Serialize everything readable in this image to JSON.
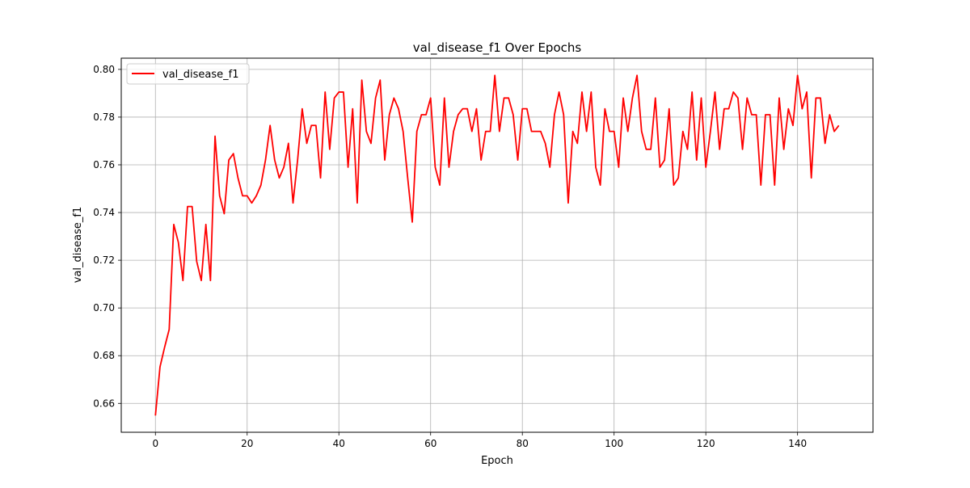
{
  "chart_data": {
    "type": "line",
    "title": "val_disease_f1 Over Epochs",
    "xlabel": "Epoch",
    "ylabel": "val_disease_f1",
    "xlim": [
      -7.45,
      156.45
    ],
    "ylim": [
      0.6479,
      0.8047
    ],
    "xticks": [
      0,
      20,
      40,
      60,
      80,
      100,
      120,
      140
    ],
    "xtick_labels": [
      "0",
      "20",
      "40",
      "60",
      "80",
      "100",
      "120",
      "140"
    ],
    "yticks": [
      0.66,
      0.68,
      0.7,
      0.72,
      0.74,
      0.76,
      0.78,
      0.8
    ],
    "ytick_labels": [
      "0.66",
      "0.68",
      "0.70",
      "0.72",
      "0.74",
      "0.76",
      "0.78",
      "0.80"
    ],
    "grid": true,
    "legend_position": "top-left",
    "series": [
      {
        "name": "val_disease_f1",
        "color": "#ff0000",
        "x_start": 0,
        "values": [
          0.6549,
          0.6753,
          0.6835,
          0.691,
          0.735,
          0.7275,
          0.7115,
          0.7425,
          0.7425,
          0.7195,
          0.7115,
          0.735,
          0.7115,
          0.772,
          0.747,
          0.7395,
          0.762,
          0.7647,
          0.7545,
          0.747,
          0.747,
          0.744,
          0.747,
          0.7515,
          0.762,
          0.7765,
          0.762,
          0.7545,
          0.759,
          0.769,
          0.744,
          0.762,
          0.7835,
          0.769,
          0.7765,
          0.7765,
          0.7545,
          0.7905,
          0.7665,
          0.788,
          0.7905,
          0.7905,
          0.759,
          0.7835,
          0.744,
          0.7955,
          0.774,
          0.769,
          0.788,
          0.7955,
          0.762,
          0.781,
          0.788,
          0.7835,
          0.774,
          0.7545,
          0.736,
          0.774,
          0.781,
          0.781,
          0.788,
          0.759,
          0.7515,
          0.788,
          0.759,
          0.774,
          0.781,
          0.7835,
          0.7835,
          0.774,
          0.7835,
          0.762,
          0.774,
          0.774,
          0.7975,
          0.774,
          0.788,
          0.788,
          0.781,
          0.762,
          0.7835,
          0.7835,
          0.774,
          0.774,
          0.774,
          0.769,
          0.759,
          0.781,
          0.7905,
          0.781,
          0.744,
          0.774,
          0.769,
          0.7905,
          0.774,
          0.7905,
          0.759,
          0.7515,
          0.7835,
          0.774,
          0.774,
          0.759,
          0.788,
          0.774,
          0.788,
          0.7975,
          0.774,
          0.7665,
          0.7665,
          0.788,
          0.759,
          0.762,
          0.7835,
          0.7515,
          0.7545,
          0.774,
          0.7665,
          0.7905,
          0.762,
          0.788,
          0.759,
          0.774,
          0.7905,
          0.7665,
          0.7835,
          0.7835,
          0.7905,
          0.788,
          0.7665,
          0.788,
          0.781,
          0.781,
          0.7515,
          0.781,
          0.781,
          0.7515,
          0.788,
          0.7665,
          0.7835,
          0.7765,
          0.7975,
          0.7835,
          0.7905,
          0.7545,
          0.788,
          0.788,
          0.769,
          0.781,
          0.774,
          0.7765
        ]
      }
    ]
  }
}
